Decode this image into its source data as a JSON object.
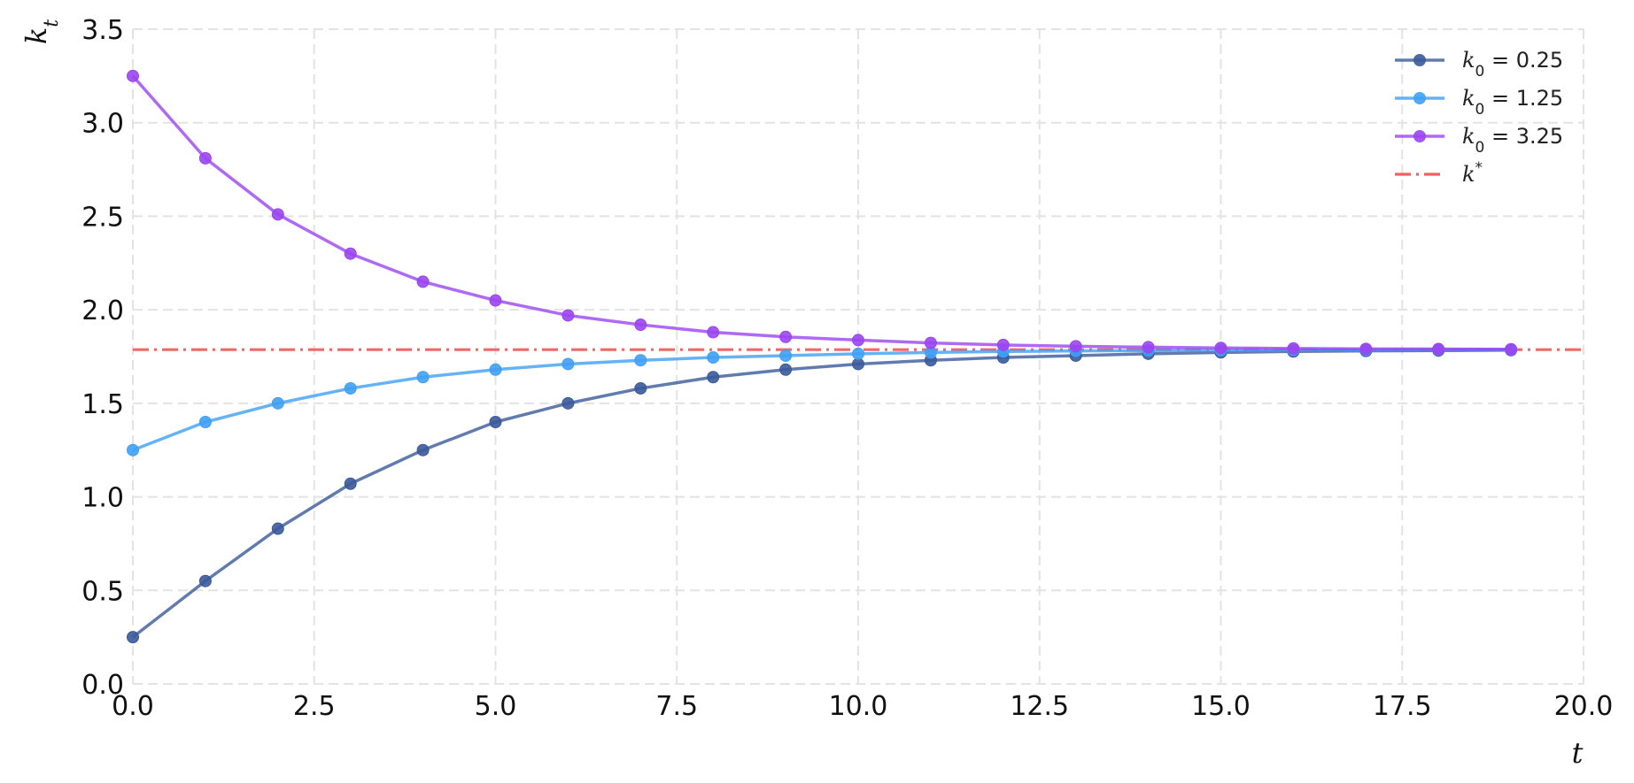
{
  "chart_data": {
    "type": "line",
    "title": "",
    "xlabel": "t",
    "ylabel": "k_t",
    "xlim": [
      0,
      20
    ],
    "ylim": [
      0,
      3.5
    ],
    "x_ticks": [
      "0.0",
      "2.5",
      "5.0",
      "7.5",
      "10.0",
      "12.5",
      "15.0",
      "17.5",
      "20.0"
    ],
    "y_ticks": [
      "0.0",
      "0.5",
      "1.0",
      "1.5",
      "2.0",
      "2.5",
      "3.0",
      "3.5"
    ],
    "grid": true,
    "legend_position": "top-right",
    "x": [
      0,
      1,
      2,
      3,
      4,
      5,
      6,
      7,
      8,
      9,
      10,
      11,
      12,
      13,
      14,
      15,
      16,
      17,
      18,
      19
    ],
    "series": [
      {
        "name": "k_0 = 0.25",
        "legend_var": "k",
        "legend_sub": "0",
        "legend_value": " = 0.25",
        "color": "#3b5a9a",
        "values": [
          0.25,
          0.55,
          0.83,
          1.07,
          1.25,
          1.4,
          1.5,
          1.58,
          1.64,
          1.68,
          1.71,
          1.73,
          1.745,
          1.755,
          1.765,
          1.772,
          1.777,
          1.78,
          1.782,
          1.784
        ]
      },
      {
        "name": "k_0 = 1.25",
        "legend_var": "k",
        "legend_sub": "0",
        "legend_value": " = 1.25",
        "color": "#3fa0f5",
        "values": [
          1.25,
          1.4,
          1.5,
          1.58,
          1.64,
          1.68,
          1.71,
          1.73,
          1.745,
          1.755,
          1.765,
          1.772,
          1.777,
          1.78,
          1.782,
          1.784,
          1.785,
          1.786,
          1.787,
          1.787
        ]
      },
      {
        "name": "k_0 = 3.25",
        "legend_var": "k",
        "legend_sub": "0",
        "legend_value": " = 3.25",
        "color": "#9b45f0",
        "values": [
          3.25,
          2.81,
          2.51,
          2.3,
          2.15,
          2.05,
          1.97,
          1.92,
          1.88,
          1.855,
          1.838,
          1.823,
          1.812,
          1.805,
          1.8,
          1.796,
          1.793,
          1.791,
          1.79,
          1.789
        ]
      }
    ],
    "steady_state": {
      "name": "k*",
      "legend_var": "k",
      "legend_sup": "*",
      "value": 1.787,
      "color": "#f06060"
    }
  }
}
